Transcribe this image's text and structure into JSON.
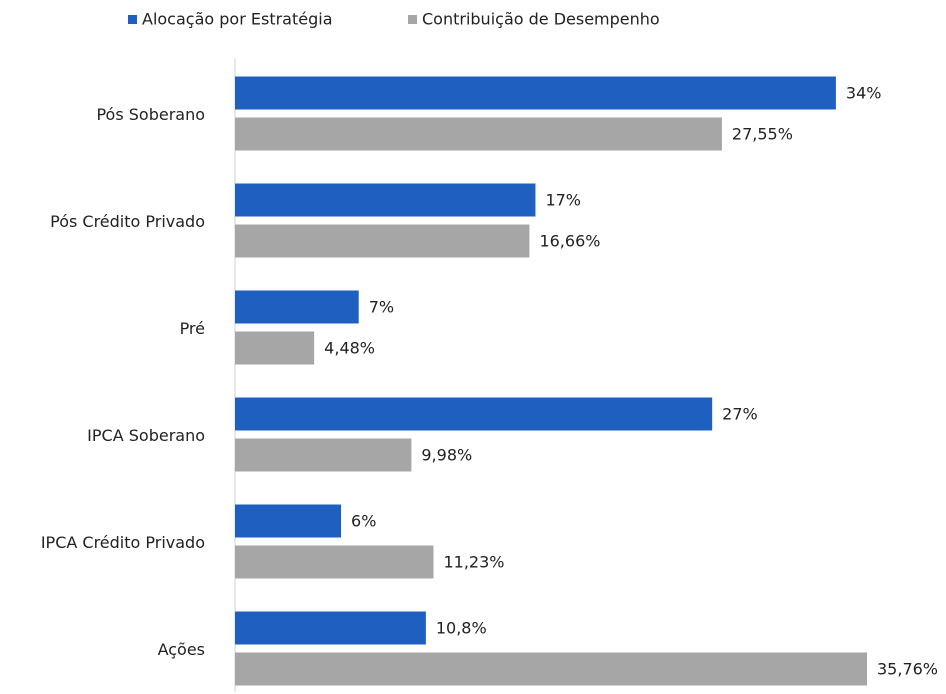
{
  "chart_data": {
    "type": "hbar",
    "categories": [
      "Pós Soberano",
      "Pós Crédito Privado",
      "Pré",
      "IPCA Soberano",
      "IPCA Crédito Privado",
      "Ações"
    ],
    "series": [
      {
        "name": "Alocação por Estratégia",
        "color": "#1f5fbf",
        "values": [
          34,
          17,
          7,
          27,
          6,
          10.8
        ],
        "value_labels": [
          "34%",
          "17%",
          "7%",
          "27%",
          "6%",
          "10,8%"
        ]
      },
      {
        "name": "Contribuição de Desempenho",
        "color": "#a6a6a6",
        "values": [
          27.55,
          16.66,
          4.48,
          9.98,
          11.23,
          35.76
        ],
        "value_labels": [
          "27,55%",
          "16,66%",
          "4,48%",
          "9,98%",
          "11,23%",
          "35,76%"
        ]
      }
    ]
  }
}
